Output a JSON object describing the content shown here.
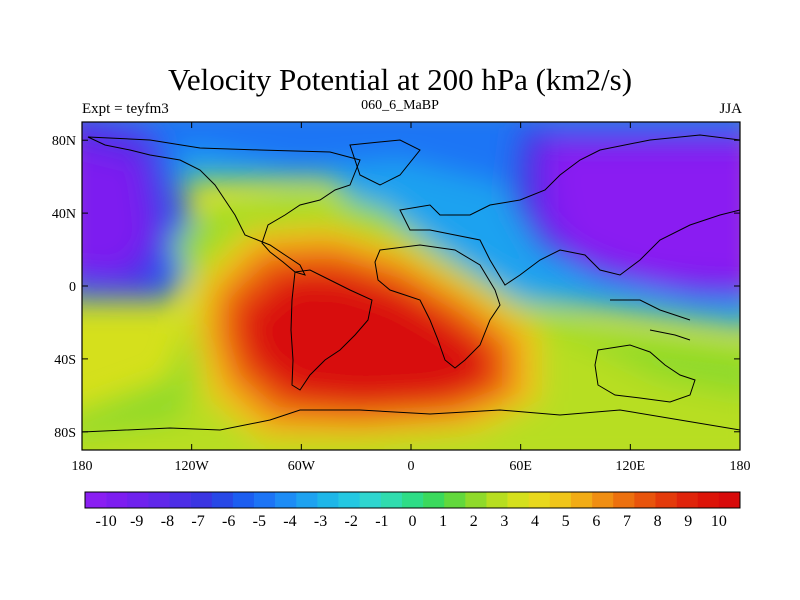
{
  "title": "Velocity Potential at 200 hPa (km2/s)",
  "left_string": "Expt = teyfm3",
  "center_string": "060_6_MaBP",
  "right_string": "JJA",
  "map": {
    "projection": "cylindrical equidistant",
    "lon_range": [
      -180,
      180
    ],
    "lat_range": [
      -90,
      90
    ],
    "lat_tick_labels": [
      "80N",
      "40N",
      "0",
      "40S",
      "80S"
    ],
    "lat_tick_values": [
      80,
      40,
      0,
      -40,
      -80
    ],
    "lon_tick_labels": [
      "180",
      "120W",
      "60W",
      "0",
      "60E",
      "120E",
      "180"
    ],
    "lon_tick_values": [
      -180,
      -120,
      -60,
      0,
      60,
      120,
      180
    ],
    "field_description": "Velocity potential; maximum ~10 over South Atlantic / South America, minimum ~-10 over Asia/North Pacific"
  },
  "colorbar": {
    "labels": [
      "-10",
      "-9",
      "-8",
      "-7",
      "-6",
      "-5",
      "-4",
      "-3",
      "-2",
      "-1",
      "0",
      "1",
      "2",
      "3",
      "4",
      "5",
      "6",
      "7",
      "8",
      "9",
      "10"
    ],
    "colors": [
      "#8a1ff2",
      "#7d1ef0",
      "#6f22ee",
      "#6028ea",
      "#4d2ee6",
      "#3a35e2",
      "#2848e6",
      "#1c5ef0",
      "#1c74f5",
      "#1d8cf5",
      "#1ea2f0",
      "#1eb6e8",
      "#24c8e2",
      "#2fd6d0",
      "#30dcae",
      "#2edc86",
      "#3ad95c",
      "#62d83c",
      "#8fda2a",
      "#b7de20",
      "#d5e01c",
      "#e8d81c",
      "#f0c51a",
      "#f2ac16",
      "#f08e12",
      "#ec700e",
      "#e8540c",
      "#e43a0a",
      "#e0240a",
      "#dc1408",
      "#d80a0a"
    ]
  }
}
